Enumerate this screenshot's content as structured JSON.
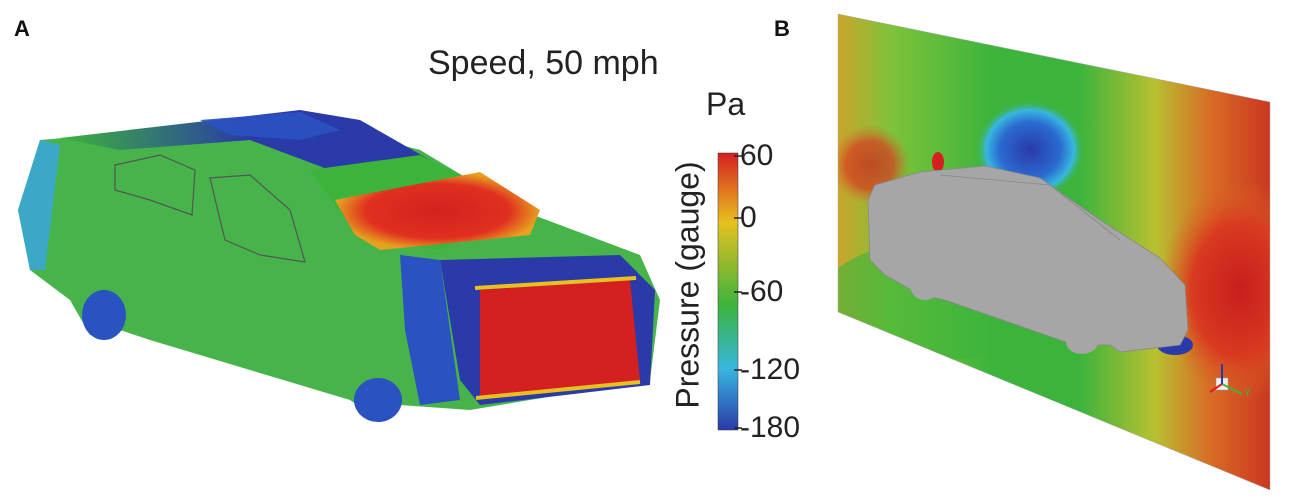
{
  "panels": {
    "a_label": "A",
    "b_label": "B"
  },
  "title": "Speed, 50 mph",
  "colorbar": {
    "unit": "Pa",
    "axis_title": "Pressure (gauge)",
    "ticks": [
      "60",
      "0",
      "-60",
      "-120",
      "-180"
    ],
    "colors": [
      "#d42020",
      "#e0b020",
      "#3cb43c",
      "#38b6e0",
      "#2a3aa8"
    ]
  },
  "axis_triad": {
    "y_label": "Y"
  },
  "colors": {
    "high_pressure": "#d42020",
    "mid_pressure": "#3cb43c",
    "low_pressure": "#2a3aa8",
    "car_gray": "#a6a6a6"
  }
}
